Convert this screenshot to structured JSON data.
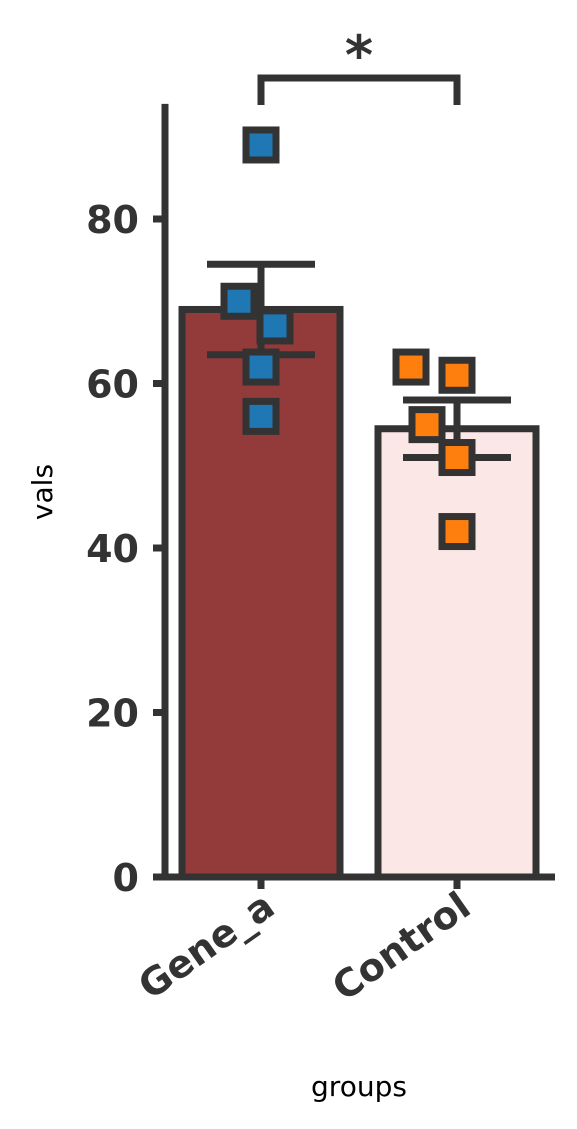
{
  "chart_data": {
    "type": "bar",
    "title": "",
    "xlabel": "groups",
    "ylabel": "vals",
    "categories": [
      "Gene_a",
      "Control"
    ],
    "values": [
      69,
      54.5
    ],
    "error": [
      5.5,
      3.5
    ],
    "bar_colors": [
      "#933a3a",
      "#fbe8e6"
    ],
    "points": [
      {
        "category": "Gene_a",
        "color": "#1f77b4",
        "values": [
          89,
          70,
          67,
          62,
          56
        ]
      },
      {
        "category": "Control",
        "color": "#ff7f0e",
        "values": [
          62,
          61,
          55,
          51,
          42
        ]
      }
    ],
    "ylim": [
      0,
      94
    ],
    "yticks": [
      0,
      20,
      40,
      60,
      80
    ],
    "significance": {
      "from": "Gene_a",
      "to": "Control",
      "label": "*"
    },
    "grid": false,
    "edge_color": "#333333"
  }
}
